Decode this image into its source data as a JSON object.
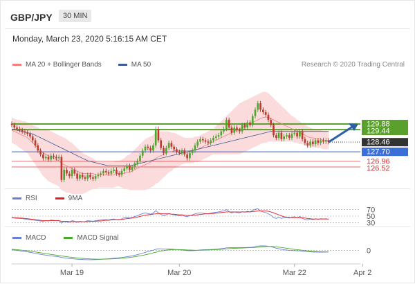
{
  "header": {
    "pair": "GBP/JPY",
    "timeframe": "30 MIN"
  },
  "date_text": "Monday, March 23, 2020 5:16:15 AM CET",
  "legend": {
    "bb": {
      "label": "MA 20 + Bollinger Bands",
      "color": "#f08080"
    },
    "ma50": {
      "label": "MA 50",
      "color": "#3a5a9a"
    },
    "rsi": {
      "label": "RSI",
      "color": "#6a7fd4"
    },
    "rsi_ma": {
      "label": "9MA",
      "color": "#e02020"
    },
    "macd": {
      "label": "MACD",
      "color": "#6a7fd4"
    },
    "macd_signal": {
      "label": "MACD Signal",
      "color": "#4aa82a"
    }
  },
  "credit": "Research © 2020 Trading Central",
  "chart_data": [
    {
      "type": "candlestick",
      "name": "price",
      "ylim": [
        125.0,
        134.0
      ],
      "levels": [
        {
          "value": 129.88,
          "label": "129.88",
          "color": "#5aa02c",
          "style": "solid"
        },
        {
          "value": 129.44,
          "label": "129.44",
          "color": "#5aa02c",
          "style": "solid"
        },
        {
          "value": 128.46,
          "label": "128.46",
          "color": "#333333",
          "style": "dotted"
        },
        {
          "value": 127.7,
          "label": "127.70",
          "color": "#3a6fd8",
          "style": "solid"
        },
        {
          "value": 126.96,
          "label": "126.96",
          "color": "#d03030",
          "style": "thin"
        },
        {
          "value": 126.52,
          "label": "126.52",
          "color": "#d03030",
          "style": "thin"
        }
      ],
      "close": [
        129.8,
        129.6,
        129.5,
        129.4,
        129.3,
        129.2,
        129.1,
        128.9,
        128.6,
        128.2,
        127.8,
        127.5,
        127.2,
        127.3,
        127.1,
        127.4,
        127.3,
        127.2,
        127.3,
        125.5,
        126.3,
        126.0,
        125.8,
        126.3,
        126.0,
        125.6,
        125.9,
        125.7,
        125.6,
        125.9,
        125.7,
        125.6,
        125.8,
        125.9,
        126.0,
        126.2,
        126.1,
        126.0,
        126.2,
        126.3,
        126.0,
        125.9,
        126.2,
        126.4,
        126.6,
        126.3,
        126.5,
        126.8,
        127.0,
        127.4,
        127.8,
        128.1,
        128.0,
        127.8,
        128.2,
        129.5,
        128.6,
        128.0,
        127.6,
        128.0,
        128.4,
        128.1,
        127.9,
        127.7,
        127.6,
        127.8,
        127.5,
        127.2,
        127.6,
        127.8,
        128.2,
        128.5,
        128.7,
        128.6,
        128.5,
        128.4,
        128.6,
        128.8,
        128.9,
        129.0,
        129.3,
        129.5,
        130.2,
        129.6,
        129.2,
        129.6,
        129.4,
        129.3,
        129.8,
        129.6,
        130.0,
        129.8,
        130.5,
        131.0,
        131.5,
        131.0,
        130.8,
        130.6,
        130.2,
        129.8,
        129.0,
        128.8,
        129.2,
        128.7,
        128.9,
        129.0,
        128.8,
        129.1,
        129.2,
        128.9,
        129.3,
        128.7,
        128.4,
        128.2,
        128.5,
        128.3,
        128.6,
        128.4,
        128.6,
        128.5,
        128.6,
        128.46
      ],
      "ma20": [
        129.4,
        129.3,
        129.2,
        129.1,
        129.0,
        128.9,
        128.8,
        128.6,
        128.4,
        128.2,
        128.0,
        127.8,
        127.6,
        127.5,
        127.4,
        127.3,
        127.2,
        127.1,
        127.0,
        126.8,
        126.7,
        126.6,
        126.5,
        126.4,
        126.3,
        126.2,
        126.1,
        126.0,
        126.0,
        126.0,
        126.0,
        126.0,
        125.9,
        125.9,
        125.9,
        125.9,
        125.9,
        125.9,
        125.9,
        125.9,
        126.0,
        126.0,
        126.0,
        126.0,
        126.1,
        126.1,
        126.2,
        126.3,
        126.4,
        126.5,
        126.6,
        126.7,
        126.8,
        126.9,
        127.0,
        127.2,
        127.3,
        127.4,
        127.5,
        127.6,
        127.7,
        127.7,
        127.8,
        127.8,
        127.8,
        127.8,
        127.8,
        127.8,
        127.8,
        127.8,
        127.9,
        127.9,
        128.0,
        128.1,
        128.2,
        128.3,
        128.4,
        128.5,
        128.6,
        128.7,
        128.8,
        128.9,
        129.0,
        129.1,
        129.2,
        129.3,
        129.4,
        129.5,
        129.6,
        129.7,
        129.8,
        129.9,
        130.0,
        130.1,
        130.2,
        130.3,
        130.4,
        130.4,
        130.4,
        130.3,
        130.2,
        130.1,
        130.0,
        129.9,
        129.8,
        129.7,
        129.6,
        129.5,
        129.4,
        129.3,
        129.2,
        129.1,
        129.0,
        128.9,
        128.8,
        128.8,
        128.7,
        128.7,
        128.7,
        128.6,
        128.6,
        128.6
      ],
      "ma50": [
        129.5,
        129.45,
        129.4,
        129.35,
        129.3,
        129.25,
        129.2,
        129.15,
        129.1,
        129.0,
        128.9,
        128.8,
        128.7,
        128.6,
        128.5,
        128.4,
        128.3,
        128.2,
        128.1,
        128.0,
        127.9,
        127.8,
        127.7,
        127.6,
        127.5,
        127.4,
        127.3,
        127.2,
        127.1,
        127.0,
        126.95,
        126.9,
        126.85,
        126.8,
        126.75,
        126.7,
        126.65,
        126.6,
        126.6,
        126.6,
        126.6,
        126.6,
        126.6,
        126.6,
        126.6,
        126.6,
        126.65,
        126.7,
        126.75,
        126.8,
        126.85,
        126.9,
        126.95,
        127.0,
        127.05,
        127.1,
        127.15,
        127.2,
        127.25,
        127.3,
        127.35,
        127.4,
        127.45,
        127.5,
        127.55,
        127.6,
        127.65,
        127.7,
        127.75,
        127.8,
        127.85,
        127.9,
        127.95,
        128.0,
        128.05,
        128.1,
        128.15,
        128.2,
        128.25,
        128.3,
        128.35,
        128.4,
        128.45,
        128.5,
        128.55,
        128.6,
        128.65,
        128.7,
        128.75,
        128.8,
        128.85,
        128.9,
        128.95,
        129.0,
        129.05,
        129.1,
        129.15,
        129.2,
        129.25,
        129.3,
        129.3,
        129.3,
        129.3,
        129.3,
        129.3,
        129.3,
        129.3,
        129.3,
        129.3,
        129.3,
        129.3,
        129.3,
        129.3,
        129.3,
        129.3,
        129.3,
        129.3,
        129.3,
        129.3,
        129.3,
        129.3,
        129.3
      ],
      "band_width": [
        1.0,
        1.0,
        1.0,
        1.1,
        1.1,
        1.2,
        1.2,
        1.3,
        1.4,
        1.5,
        1.6,
        1.7,
        1.8,
        1.9,
        2.0,
        2.0,
        2.0,
        2.0,
        2.0,
        2.1,
        2.1,
        2.1,
        2.0,
        2.0,
        1.9,
        1.8,
        1.7,
        1.6,
        1.5,
        1.4,
        1.3,
        1.2,
        1.1,
        1.0,
        1.0,
        1.0,
        1.0,
        1.0,
        1.0,
        1.0,
        1.0,
        1.0,
        1.1,
        1.2,
        1.3,
        1.4,
        1.5,
        1.6,
        1.7,
        1.8,
        1.9,
        2.0,
        2.0,
        2.0,
        2.0,
        2.0,
        2.0,
        1.9,
        1.8,
        1.7,
        1.6,
        1.5,
        1.4,
        1.3,
        1.2,
        1.1,
        1.0,
        1.0,
        1.0,
        1.0,
        1.0,
        1.0,
        1.0,
        1.0,
        1.0,
        1.0,
        1.0,
        1.0,
        1.1,
        1.2,
        1.3,
        1.4,
        1.5,
        1.6,
        1.7,
        1.8,
        1.9,
        2.0,
        2.0,
        2.0,
        2.0,
        2.0,
        2.0,
        2.0,
        2.0,
        2.0,
        2.0,
        2.0,
        1.9,
        1.8,
        1.7,
        1.6,
        1.5,
        1.4,
        1.3,
        1.2,
        1.1,
        1.0,
        1.0,
        0.9,
        0.9,
        0.8,
        0.8,
        0.8,
        0.8,
        0.7,
        0.7,
        0.7,
        0.7,
        0.7,
        0.7,
        0.7
      ]
    },
    {
      "type": "line",
      "name": "rsi",
      "ylim": [
        20,
        80
      ],
      "ticks": [
        70,
        50,
        30
      ],
      "series": [
        {
          "name": "RSI",
          "values": [
            45,
            44,
            43,
            43,
            42,
            41,
            40,
            39,
            38,
            37,
            36,
            35,
            34,
            36,
            35,
            38,
            37,
            36,
            37,
            28,
            34,
            32,
            31,
            36,
            34,
            31,
            34,
            33,
            33,
            36,
            35,
            34,
            36,
            37,
            38,
            40,
            39,
            38,
            40,
            41,
            39,
            38,
            42,
            45,
            47,
            44,
            46,
            49,
            51,
            55,
            58,
            60,
            58,
            56,
            59,
            67,
            60,
            55,
            51,
            54,
            58,
            56,
            54,
            52,
            51,
            53,
            50,
            48,
            52,
            54,
            57,
            59,
            60,
            59,
            58,
            57,
            59,
            61,
            62,
            63,
            65,
            66,
            70,
            64,
            60,
            63,
            61,
            60,
            64,
            62,
            65,
            63,
            68,
            71,
            73,
            66,
            63,
            61,
            57,
            53,
            45,
            43,
            47,
            43,
            45,
            46,
            44,
            47,
            48,
            45,
            49,
            43,
            40,
            38,
            41,
            39,
            42,
            40,
            42,
            41,
            42,
            40
          ]
        },
        {
          "name": "9MA",
          "values": [
            46,
            45,
            45,
            44,
            44,
            43,
            42,
            41,
            40,
            39,
            38,
            37,
            36,
            36,
            36,
            36,
            36,
            36,
            36,
            34,
            34,
            34,
            33,
            33,
            33,
            33,
            33,
            33,
            33,
            33,
            34,
            34,
            34,
            35,
            35,
            36,
            37,
            37,
            38,
            39,
            39,
            39,
            40,
            41,
            42,
            43,
            44,
            45,
            47,
            49,
            51,
            53,
            54,
            55,
            56,
            57,
            58,
            58,
            57,
            57,
            57,
            56,
            56,
            55,
            54,
            54,
            53,
            52,
            52,
            52,
            53,
            54,
            55,
            56,
            57,
            57,
            58,
            58,
            59,
            60,
            61,
            62,
            63,
            63,
            63,
            63,
            63,
            63,
            63,
            63,
            63,
            63,
            64,
            65,
            66,
            66,
            66,
            66,
            65,
            63,
            60,
            57,
            54,
            51,
            48,
            47,
            46,
            45,
            45,
            45,
            45,
            45,
            44,
            43,
            42,
            41,
            41,
            41,
            41,
            41,
            41,
            41
          ]
        }
      ]
    },
    {
      "type": "line",
      "name": "macd",
      "ylim": [
        -1.3,
        0.9
      ],
      "ticks": [
        0
      ],
      "series": [
        {
          "name": "MACD",
          "values": [
            0.05,
            0.02,
            -0.02,
            -0.06,
            -0.1,
            -0.14,
            -0.18,
            -0.22,
            -0.27,
            -0.32,
            -0.38,
            -0.43,
            -0.48,
            -0.52,
            -0.56,
            -0.6,
            -0.63,
            -0.66,
            -0.69,
            -0.76,
            -0.8,
            -0.84,
            -0.88,
            -0.9,
            -0.92,
            -0.95,
            -0.97,
            -0.98,
            -0.99,
            -1.0,
            -1.0,
            -1.0,
            -0.99,
            -0.98,
            -0.96,
            -0.94,
            -0.92,
            -0.9,
            -0.87,
            -0.84,
            -0.82,
            -0.8,
            -0.77,
            -0.73,
            -0.68,
            -0.64,
            -0.59,
            -0.53,
            -0.46,
            -0.39,
            -0.31,
            -0.22,
            -0.14,
            -0.07,
            0.0,
            0.1,
            0.15,
            0.15,
            0.13,
            0.12,
            0.13,
            0.12,
            0.1,
            0.07,
            0.04,
            0.02,
            -0.01,
            -0.04,
            -0.05,
            -0.05,
            -0.03,
            0.0,
            0.03,
            0.05,
            0.06,
            0.07,
            0.08,
            0.1,
            0.12,
            0.14,
            0.17,
            0.2,
            0.25,
            0.27,
            0.27,
            0.28,
            0.28,
            0.27,
            0.28,
            0.28,
            0.3,
            0.3,
            0.33,
            0.38,
            0.44,
            0.46,
            0.46,
            0.45,
            0.42,
            0.38,
            0.3,
            0.22,
            0.17,
            0.1,
            0.05,
            0.02,
            -0.02,
            -0.03,
            -0.04,
            -0.06,
            -0.06,
            -0.09,
            -0.13,
            -0.16,
            -0.17,
            -0.19,
            -0.19,
            -0.2,
            -0.2,
            -0.2,
            -0.19,
            -0.19
          ]
        },
        {
          "name": "MACD Signal",
          "values": [
            0.1,
            0.08,
            0.06,
            0.03,
            0.0,
            -0.03,
            -0.06,
            -0.1,
            -0.14,
            -0.18,
            -0.22,
            -0.27,
            -0.31,
            -0.36,
            -0.4,
            -0.44,
            -0.48,
            -0.52,
            -0.56,
            -0.6,
            -0.64,
            -0.68,
            -0.72,
            -0.75,
            -0.78,
            -0.81,
            -0.84,
            -0.86,
            -0.88,
            -0.9,
            -0.92,
            -0.93,
            -0.94,
            -0.95,
            -0.95,
            -0.95,
            -0.94,
            -0.93,
            -0.92,
            -0.9,
            -0.88,
            -0.86,
            -0.84,
            -0.82,
            -0.79,
            -0.76,
            -0.73,
            -0.69,
            -0.64,
            -0.59,
            -0.54,
            -0.48,
            -0.42,
            -0.35,
            -0.28,
            -0.21,
            -0.14,
            -0.08,
            -0.04,
            0.0,
            0.03,
            0.05,
            0.06,
            0.07,
            0.07,
            0.06,
            0.05,
            0.03,
            0.02,
            0.01,
            0.0,
            0.0,
            0.0,
            0.01,
            0.02,
            0.03,
            0.04,
            0.05,
            0.07,
            0.08,
            0.1,
            0.12,
            0.14,
            0.17,
            0.19,
            0.21,
            0.22,
            0.23,
            0.24,
            0.25,
            0.26,
            0.27,
            0.28,
            0.3,
            0.32,
            0.35,
            0.37,
            0.39,
            0.4,
            0.4,
            0.39,
            0.36,
            0.33,
            0.29,
            0.25,
            0.21,
            0.17,
            0.13,
            0.09,
            0.06,
            0.03,
            0.0,
            -0.03,
            -0.06,
            -0.09,
            -0.11,
            -0.13,
            -0.15,
            -0.16,
            -0.17,
            -0.18,
            -0.18
          ]
        }
      ]
    }
  ],
  "x_axis": {
    "ticks": [
      {
        "label": "Mar 19",
        "index": 23
      },
      {
        "label": "Mar 20",
        "index": 64
      },
      {
        "label": "Mar 22",
        "index": 108
      },
      {
        "label": "Apr 2",
        "index": 134
      }
    ]
  }
}
